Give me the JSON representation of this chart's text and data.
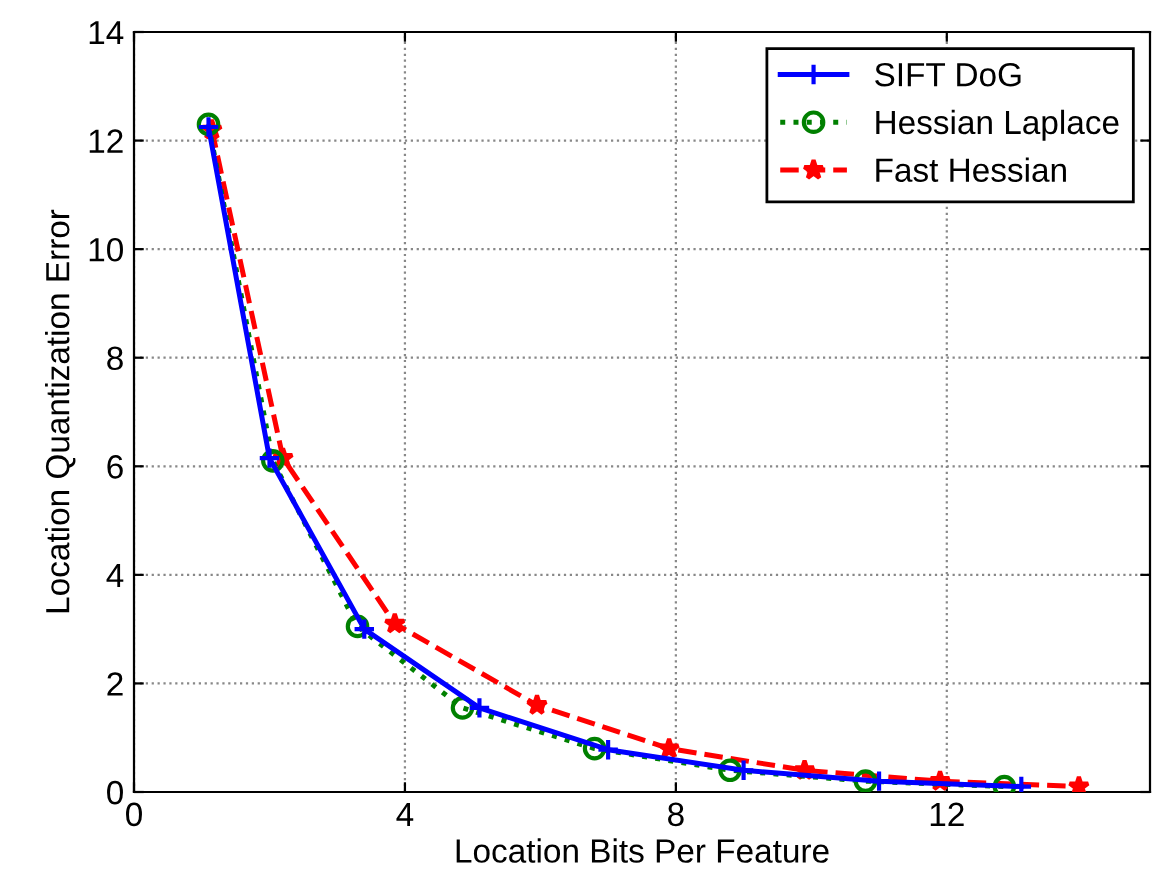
{
  "chart_data": {
    "type": "line",
    "xlabel": "Location Bits Per Feature",
    "ylabel": "Location Quantization Error",
    "xlim": [
      0,
      15
    ],
    "ylim": [
      0,
      14
    ],
    "xticks": [
      0,
      4,
      8,
      12
    ],
    "yticks": [
      0,
      2,
      4,
      6,
      8,
      10,
      12,
      14
    ],
    "grid": true,
    "legend": "top right",
    "series": [
      {
        "name": "SIFT DoG",
        "color": "#0000ff",
        "marker": "cross",
        "line_style": "solid",
        "x": [
          1.1,
          2.0,
          3.4,
          5.1,
          7.0,
          9.0,
          11.0,
          13.1
        ],
        "values": [
          12.25,
          6.15,
          3.0,
          1.55,
          0.78,
          0.4,
          0.2,
          0.1
        ]
      },
      {
        "name": "Hessian Laplace",
        "color": "#008000",
        "marker": "circle",
        "line_style": "dotted",
        "x": [
          1.1,
          2.05,
          3.3,
          4.85,
          6.8,
          8.8,
          10.8,
          12.85
        ],
        "values": [
          12.3,
          6.1,
          3.05,
          1.55,
          0.8,
          0.4,
          0.2,
          0.1
        ]
      },
      {
        "name": "Fast Hessian",
        "color": "#ff0000",
        "marker": "star",
        "line_style": "dashed",
        "x": [
          1.15,
          2.2,
          3.85,
          5.95,
          7.9,
          9.9,
          11.9,
          13.95
        ],
        "values": [
          12.2,
          6.15,
          3.1,
          1.6,
          0.8,
          0.4,
          0.2,
          0.1
        ]
      }
    ]
  }
}
